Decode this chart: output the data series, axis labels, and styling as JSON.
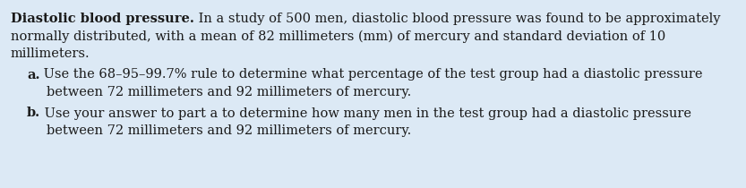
{
  "background_color": "#dce9f5",
  "text_color": "#1a1a1a",
  "title_bold": "Diastolic blood pressure.",
  "title_normal": " In a study of 500 men, diastolic blood pressure was found to be approximately",
  "line2": "normally distributed, with a mean of 82 millimeters (mm) of mercury and standard deviation of 10",
  "line3": "millimeters.",
  "part_a_bold": "a.",
  "part_a_text": " Use the 68–95–99.7% rule to determine what percentage of the test group had a diastolic pressure",
  "part_a_line2": "    between 72 millimeters and 92 millimeters of mercury.",
  "part_b_bold": "b.",
  "part_b_text": " Use your answer to part a to determine how many men in the test group had a diastolic pressure",
  "part_b_line2": "    between 72 millimeters and 92 millimeters of mercury.",
  "font_size": 10.5,
  "fig_width": 8.33,
  "fig_height": 2.1,
  "dpi": 100
}
